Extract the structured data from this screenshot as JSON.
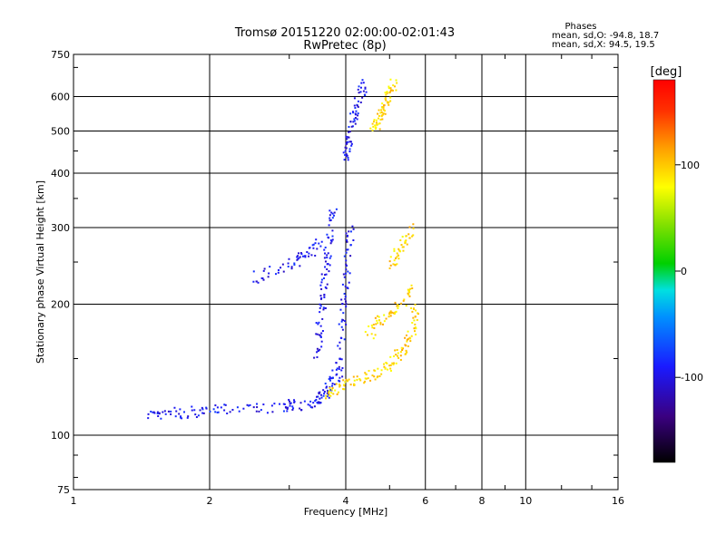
{
  "chart_data": {
    "type": "scatter",
    "title": "Tromsø 20151220 02:00:00-02:01:43",
    "subtitle": "RwPretec (8p)",
    "xlabel": "Frequency [MHz]",
    "ylabel": "Stationary phase Virtual Height [km]",
    "x_scale": "log",
    "y_scale": "log",
    "xlim": [
      1,
      16
    ],
    "ylim": [
      75,
      750
    ],
    "x_ticks": [
      1,
      2,
      4,
      6,
      8,
      10,
      16
    ],
    "y_ticks": [
      75,
      100,
      200,
      300,
      400,
      500,
      600,
      750
    ],
    "grid": true,
    "phase_stats": {
      "heading": "Phases",
      "o_line": "mean, sd,O: -94.8, 18.7",
      "x_line": "mean, sd,X:  94.5, 19.5"
    },
    "colorbar": {
      "label": "[deg]",
      "range": [
        -180,
        180
      ],
      "ticks": [
        100,
        0,
        -100
      ]
    },
    "series": [
      {
        "mode": "O",
        "mean_phase": -94.8,
        "sd_phase": 18.7,
        "traces": [
          {
            "x": [
              1.45,
              1.6,
              1.8,
              2.0,
              2.3,
              2.7,
              3.0,
              3.3,
              3.5,
              3.62,
              3.7,
              3.8
            ],
            "y": [
              110,
              112,
              113,
              114,
              115,
              116,
              117,
              118,
              120,
              124,
              130,
              140
            ]
          },
          {
            "x": [
              3.45,
              3.5,
              3.55,
              3.6,
              3.65,
              3.7,
              3.75
            ],
            "y": [
              150,
              170,
              200,
              230,
              260,
              290,
              330
            ]
          },
          {
            "x": [
              3.85,
              3.9,
              3.95,
              4.0,
              4.05,
              4.1
            ],
            "y": [
              130,
              160,
              190,
              220,
              260,
              300
            ]
          },
          {
            "x": [
              2.5,
              2.8,
              3.1,
              3.3,
              3.5
            ],
            "y": [
              230,
              240,
              250,
              260,
              275
            ]
          },
          {
            "x": [
              4.0,
              4.05,
              4.1,
              4.2,
              4.3,
              4.4
            ],
            "y": [
              430,
              460,
              500,
              550,
              600,
              640
            ]
          }
        ]
      },
      {
        "mode": "X",
        "mean_phase": 94.5,
        "sd_phase": 19.5,
        "traces": [
          {
            "x": [
              3.6,
              3.8,
              4.1,
              4.4,
              4.7,
              5.0,
              5.3,
              5.5,
              5.65,
              5.7
            ],
            "y": [
              125,
              128,
              132,
              136,
              140,
              146,
              154,
              165,
              180,
              200
            ]
          },
          {
            "x": [
              4.5,
              4.7,
              5.0,
              5.3,
              5.6
            ],
            "y": [
              170,
              180,
              190,
              200,
              215
            ]
          },
          {
            "x": [
              4.6,
              4.7,
              4.8,
              4.9,
              5.0,
              5.1
            ],
            "y": [
              500,
              520,
              550,
              580,
              610,
              640
            ]
          },
          {
            "x": [
              5.0,
              5.2,
              5.4,
              5.6
            ],
            "y": [
              240,
              260,
              280,
              300
            ]
          }
        ]
      }
    ]
  }
}
